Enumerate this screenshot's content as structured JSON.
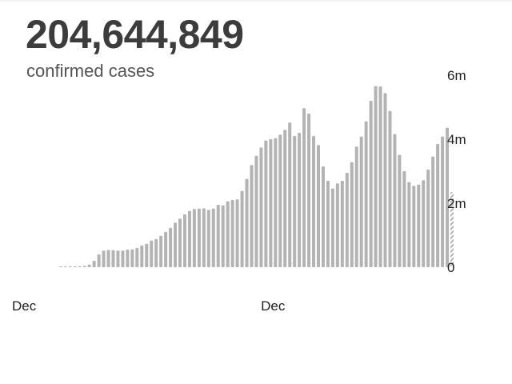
{
  "headline": {
    "total": "204,644,849",
    "caption": "confirmed cases"
  },
  "colors": {
    "bar": "#b3b3b3",
    "partial_bar": "#b3b3b3",
    "text": "#3c3c3c"
  },
  "chart_data": {
    "type": "bar",
    "title": "",
    "xlabel": "",
    "ylabel": "",
    "ylim": [
      0,
      6000000
    ],
    "y_ticks": [
      {
        "value": 0,
        "label": "0"
      },
      {
        "value": 2000000,
        "label": "2m"
      },
      {
        "value": 4000000,
        "label": "4m"
      },
      {
        "value": 6000000,
        "label": "6m"
      }
    ],
    "x_ticks": [
      {
        "index": 0,
        "label": "Dec"
      },
      {
        "index": 53,
        "label": "Dec"
      }
    ],
    "grid": false,
    "legend": "none",
    "values": [
      0,
      0,
      0,
      3000,
      10000,
      15000,
      20000,
      30000,
      40000,
      80000,
      200000,
      400000,
      520000,
      540000,
      530000,
      520000,
      520000,
      550000,
      560000,
      600000,
      680000,
      730000,
      830000,
      880000,
      980000,
      1100000,
      1230000,
      1390000,
      1520000,
      1650000,
      1760000,
      1820000,
      1830000,
      1840000,
      1790000,
      1830000,
      1950000,
      1930000,
      2060000,
      2100000,
      2120000,
      2380000,
      2760000,
      3190000,
      3480000,
      3740000,
      3960000,
      4000000,
      4030000,
      4140000,
      4290000,
      4520000,
      4100000,
      4200000,
      4970000,
      4800000,
      4100000,
      3820000,
      3150000,
      2700000,
      2460000,
      2620000,
      2700000,
      2950000,
      3280000,
      3770000,
      4080000,
      4560000,
      5200000,
      5660000,
      5650000,
      5440000,
      4880000,
      4160000,
      3510000,
      3000000,
      2660000,
      2540000,
      2580000,
      2720000,
      3050000,
      3460000,
      3850000,
      4080000,
      4360000,
      2350000
    ],
    "partial_last": true
  }
}
